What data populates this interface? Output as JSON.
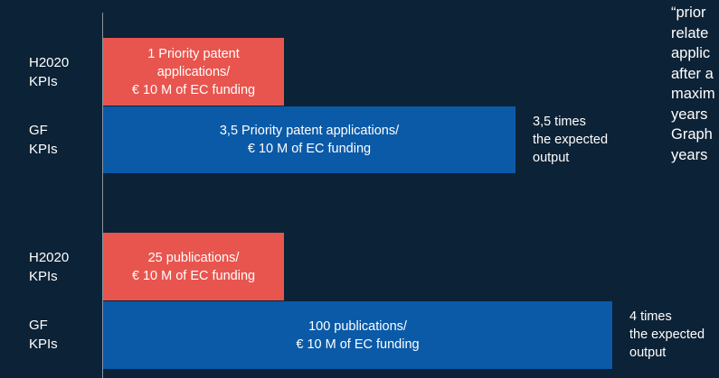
{
  "rows": [
    {
      "label": [
        "H2020",
        "KPIs"
      ],
      "bar": [
        "1 Priority patent",
        "applications/",
        "€ 10 M of EC funding"
      ],
      "note": []
    },
    {
      "label": [
        "GF",
        "KPIs"
      ],
      "bar": [
        "3,5 Priority patent applications/",
        "€ 10 M of EC funding"
      ],
      "note": [
        "3,5 times",
        "the expected",
        "output"
      ]
    },
    {
      "label": [
        "H2020",
        "KPIs"
      ],
      "bar": [
        "25 publications/",
        "€ 10 M of EC funding"
      ],
      "note": []
    },
    {
      "label": [
        "GF",
        "KPIs"
      ],
      "bar": [
        "100 publications/",
        "€ 10 M of EC funding"
      ],
      "note": [
        "4 times",
        "the expected",
        "output"
      ]
    }
  ],
  "side_text": [
    "“prior",
    "relate",
    "applic",
    "after a",
    "maxim",
    "years",
    "Graph",
    "years"
  ]
}
